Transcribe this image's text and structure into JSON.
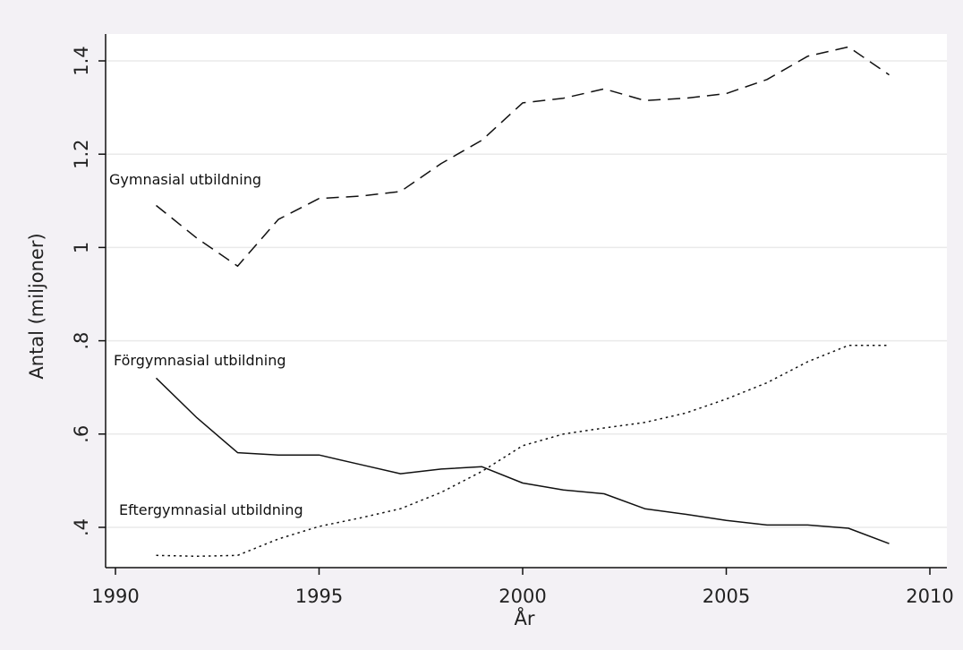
{
  "chart_data": {
    "type": "line",
    "title": "",
    "xlabel": "År",
    "ylabel": "Antal (miljoner)",
    "xlim": [
      1990,
      2010
    ],
    "ylim": [
      0.4,
      1.4
    ],
    "x_ticks": [
      1990,
      1995,
      2000,
      2005,
      2010
    ],
    "x_tick_labels": [
      "1990",
      "1995",
      "2000",
      "2005",
      "2010"
    ],
    "y_ticks": [
      0.4,
      0.6,
      0.8,
      1.0,
      1.2,
      1.4
    ],
    "y_tick_labels": [
      ".4",
      ".6",
      ".8",
      "1",
      "1.2",
      "1.4"
    ],
    "grid": true,
    "legend": "none",
    "x": [
      1991,
      1992,
      1993,
      1994,
      1995,
      1996,
      1997,
      1998,
      1999,
      2000,
      2001,
      2002,
      2003,
      2004,
      2005,
      2006,
      2007,
      2008,
      2009
    ],
    "series": [
      {
        "name": "Gymnasial utbildning",
        "style": "dashed",
        "values": [
          1.09,
          1.02,
          0.96,
          1.06,
          1.105,
          1.11,
          1.12,
          1.18,
          1.23,
          1.31,
          1.32,
          1.34,
          1.315,
          1.32,
          1.33,
          1.36,
          1.41,
          1.43,
          1.37
        ]
      },
      {
        "name": "Förgymnasial utbildning",
        "style": "solid",
        "values": [
          0.72,
          0.635,
          0.56,
          0.555,
          0.555,
          0.535,
          0.515,
          0.525,
          0.53,
          0.495,
          0.48,
          0.472,
          0.44,
          0.428,
          0.415,
          0.405,
          0.405,
          0.398,
          0.365
        ]
      },
      {
        "name": "Eftergymnasial utbildning",
        "style": "dotted",
        "values": [
          0.34,
          0.338,
          0.34,
          0.375,
          0.402,
          0.42,
          0.44,
          0.475,
          0.52,
          0.575,
          0.6,
          0.613,
          0.625,
          0.645,
          0.675,
          0.71,
          0.755,
          0.79,
          0.79
        ]
      }
    ],
    "colors": {
      "background": "#f3f1f5",
      "plot_background": "#ffffff",
      "grid": "#eaeaea",
      "line": "#111111"
    }
  }
}
